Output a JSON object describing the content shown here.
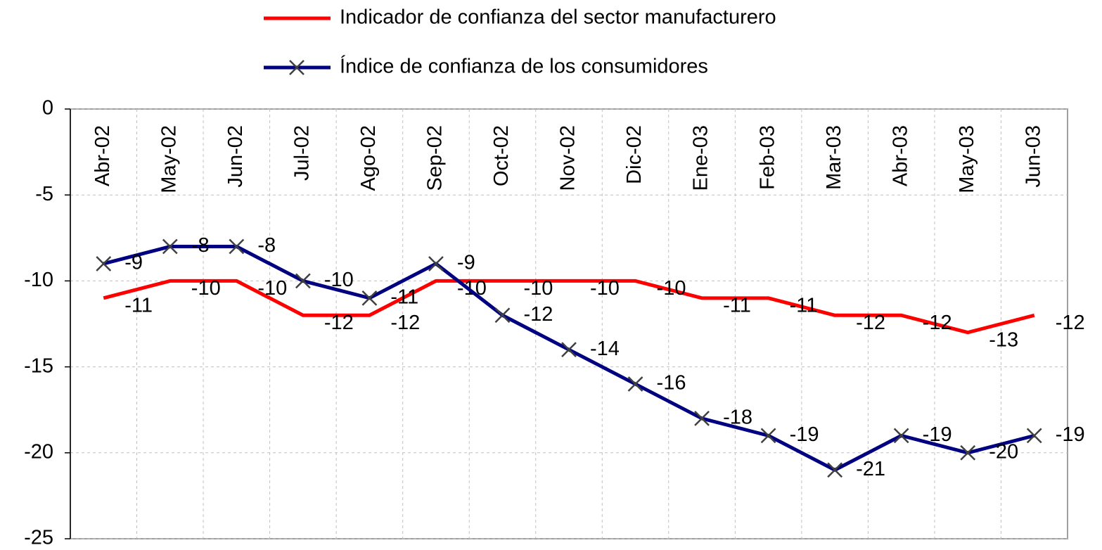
{
  "chart_data": {
    "type": "line",
    "categories": [
      "Abr-02",
      "May-02",
      "Jun-02",
      "Jul-02",
      "Ago-02",
      "Sep-02",
      "Oct-02",
      "Nov-02",
      "Dic-02",
      "Ene-03",
      "Feb-03",
      "Mar-03",
      "Abr-03",
      "May-03",
      "Jun-03"
    ],
    "series": [
      {
        "name": "Indicador de confianza del sector manufacturero",
        "color": "#ff0000",
        "marker": "none",
        "values": [
          -11,
          -10,
          -10,
          -12,
          -12,
          -10,
          -10,
          -10,
          -10,
          -11,
          -11,
          -12,
          -12,
          -13,
          -12
        ]
      },
      {
        "name": "Índice de confianza de los consumidores",
        "color": "#000080",
        "marker": "x",
        "values": [
          -9,
          -8,
          -8,
          -10,
          -11,
          -9,
          -12,
          -14,
          -16,
          -18,
          -19,
          -21,
          -19,
          -20,
          -19
        ]
      }
    ],
    "ylim": [
      -25,
      0
    ],
    "yticks": [
      0,
      -5,
      -10,
      -15,
      -20,
      -25
    ],
    "grid": true,
    "legend": "top",
    "data_labels": true
  }
}
